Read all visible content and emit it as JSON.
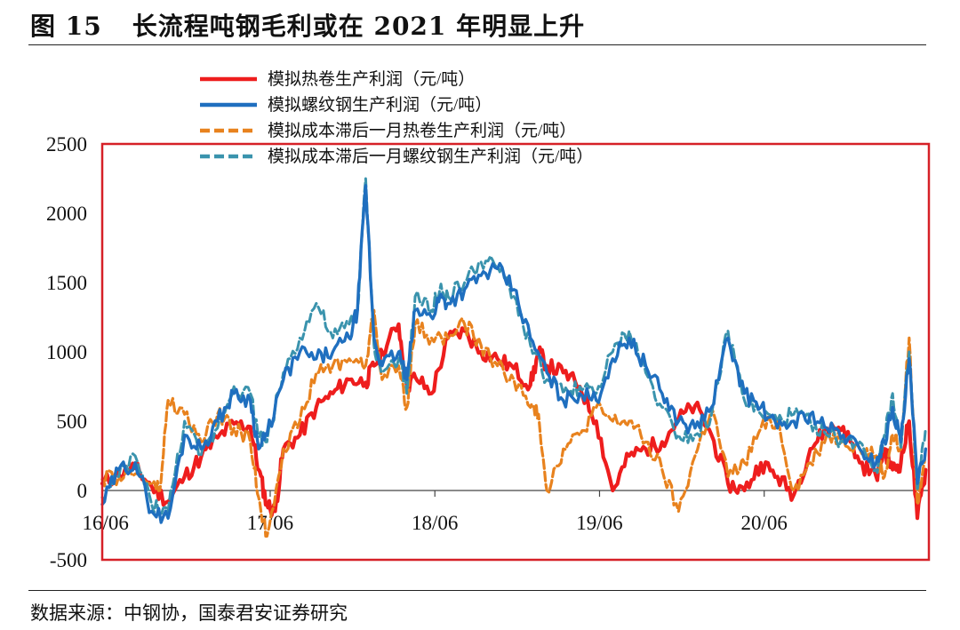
{
  "figure": {
    "number": "图 15",
    "title": "长流程吨钢毛利或在 2021 年明显上升",
    "source": "数据来源：中钢协，国泰君安证券研究"
  },
  "colors": {
    "hot_rolled": "#ee1d1d",
    "rebar": "#1f6fbf",
    "hot_rolled_lag": "#e8821e",
    "rebar_lag": "#3a93ad",
    "frame": "#d62027"
  },
  "chart_data": {
    "type": "line",
    "title": "长流程吨钢毛利或在 2021 年明显上升",
    "xlabel": "",
    "ylabel": "",
    "ylim": [
      -500,
      2500
    ],
    "yticks": [
      -500,
      0,
      500,
      1000,
      1500,
      2000,
      2500
    ],
    "ytick_labels": [
      "-500",
      "0",
      "500",
      "1000",
      "1500",
      "2000",
      "2500"
    ],
    "xlim": [
      2016.4,
      2021.42
    ],
    "xticks": [
      2016.42,
      2017.42,
      2018.42,
      2019.42,
      2020.42
    ],
    "xtick_labels": [
      "16/06",
      "17/06",
      "18/06",
      "19/06",
      "20/06"
    ],
    "grid": false,
    "legend_position": "top",
    "series": [
      {
        "name": "模拟热卷生产利润（元/吨）",
        "style": "solid",
        "color_key": "hot_rolled",
        "x": [
          2016.4,
          2016.5,
          2016.6,
          2016.7,
          2016.8,
          2016.9,
          2017.0,
          2017.1,
          2017.2,
          2017.3,
          2017.35,
          2017.4,
          2017.45,
          2017.5,
          2017.6,
          2017.7,
          2017.8,
          2017.9,
          2018.0,
          2018.05,
          2018.1,
          2018.2,
          2018.25,
          2018.3,
          2018.4,
          2018.5,
          2018.6,
          2018.7,
          2018.8,
          2018.9,
          2019.0,
          2019.05,
          2019.1,
          2019.2,
          2019.3,
          2019.4,
          2019.5,
          2019.6,
          2019.7,
          2019.8,
          2019.9,
          2020.0,
          2020.1,
          2020.2,
          2020.3,
          2020.4,
          2020.5,
          2020.6,
          2020.7,
          2020.8,
          2020.9,
          2021.0,
          2021.1,
          2021.15,
          2021.2,
          2021.25,
          2021.3,
          2021.35,
          2021.4
        ],
        "values": [
          50,
          120,
          160,
          30,
          -80,
          100,
          240,
          380,
          480,
          460,
          150,
          -100,
          -150,
          300,
          400,
          600,
          700,
          800,
          780,
          900,
          1000,
          1200,
          750,
          820,
          700,
          1100,
          1150,
          1000,
          950,
          880,
          760,
          1000,
          900,
          850,
          750,
          500,
          0,
          250,
          300,
          350,
          520,
          610,
          400,
          50,
          0,
          200,
          100,
          -30,
          300,
          450,
          460,
          200,
          100,
          300,
          150,
          200,
          500,
          -200,
          150
        ]
      },
      {
        "name": "模拟螺纹钢生产利润（元/吨）",
        "style": "solid",
        "color_key": "rebar",
        "x": [
          2016.4,
          2016.5,
          2016.6,
          2016.7,
          2016.8,
          2016.9,
          2017.0,
          2017.1,
          2017.2,
          2017.3,
          2017.35,
          2017.4,
          2017.5,
          2017.6,
          2017.7,
          2017.8,
          2017.9,
          2017.95,
          2018.0,
          2018.05,
          2018.1,
          2018.2,
          2018.25,
          2018.3,
          2018.4,
          2018.45,
          2018.5,
          2018.6,
          2018.7,
          2018.8,
          2018.9,
          2019.0,
          2019.1,
          2019.2,
          2019.3,
          2019.4,
          2019.5,
          2019.6,
          2019.7,
          2019.8,
          2019.9,
          2020.0,
          2020.1,
          2020.2,
          2020.3,
          2020.4,
          2020.5,
          2020.6,
          2020.7,
          2020.8,
          2020.9,
          2021.0,
          2021.1,
          2021.15,
          2021.2,
          2021.25,
          2021.3,
          2021.35,
          2021.4
        ],
        "values": [
          -100,
          150,
          200,
          -150,
          -200,
          400,
          300,
          500,
          700,
          650,
          300,
          400,
          800,
          1000,
          950,
          1000,
          1100,
          1300,
          2200,
          1100,
          900,
          1000,
          800,
          1300,
          1250,
          1400,
          1350,
          1450,
          1550,
          1600,
          1450,
          1100,
          850,
          650,
          700,
          650,
          950,
          1100,
          900,
          700,
          500,
          450,
          600,
          1100,
          700,
          600,
          450,
          500,
          550,
          450,
          400,
          300,
          200,
          350,
          600,
          350,
          950,
          50,
          300
        ]
      },
      {
        "name": "模拟成本滞后一月热卷生产利润（元/吨）",
        "style": "dashed",
        "color_key": "hot_rolled_lag",
        "x": [
          2016.4,
          2016.5,
          2016.6,
          2016.7,
          2016.75,
          2016.8,
          2016.9,
          2017.0,
          2017.1,
          2017.2,
          2017.3,
          2017.35,
          2017.4,
          2017.5,
          2017.6,
          2017.7,
          2017.8,
          2017.9,
          2018.0,
          2018.05,
          2018.1,
          2018.2,
          2018.25,
          2018.3,
          2018.4,
          2018.5,
          2018.6,
          2018.7,
          2018.8,
          2018.9,
          2019.0,
          2019.05,
          2019.1,
          2019.2,
          2019.3,
          2019.4,
          2019.5,
          2019.6,
          2019.7,
          2019.8,
          2019.9,
          2020.0,
          2020.1,
          2020.2,
          2020.3,
          2020.4,
          2020.5,
          2020.6,
          2020.7,
          2020.8,
          2020.9,
          2021.0,
          2021.1,
          2021.15,
          2021.2,
          2021.25,
          2021.3,
          2021.35,
          2021.4
        ],
        "values": [
          80,
          100,
          120,
          50,
          0,
          650,
          550,
          350,
          550,
          450,
          350,
          -50,
          -330,
          300,
          500,
          850,
          900,
          950,
          900,
          1300,
          800,
          900,
          600,
          1200,
          1100,
          1100,
          1200,
          1050,
          900,
          800,
          600,
          550,
          0,
          300,
          400,
          600,
          500,
          500,
          350,
          150,
          -150,
          250,
          600,
          100,
          200,
          450,
          500,
          0,
          200,
          400,
          380,
          300,
          250,
          100,
          400,
          300,
          1100,
          -100,
          300
        ]
      },
      {
        "name": "模拟成本滞后一月螺纹钢生产利润（元/吨）",
        "style": "dashed",
        "color_key": "rebar_lag",
        "x": [
          2016.4,
          2016.5,
          2016.6,
          2016.7,
          2016.8,
          2016.9,
          2017.0,
          2017.1,
          2017.2,
          2017.3,
          2017.35,
          2017.4,
          2017.5,
          2017.6,
          2017.7,
          2017.8,
          2017.9,
          2017.95,
          2018.0,
          2018.05,
          2018.1,
          2018.2,
          2018.25,
          2018.3,
          2018.4,
          2018.45,
          2018.5,
          2018.6,
          2018.7,
          2018.8,
          2018.9,
          2019.0,
          2019.1,
          2019.2,
          2019.3,
          2019.4,
          2019.5,
          2019.6,
          2019.7,
          2019.8,
          2019.9,
          2020.0,
          2020.1,
          2020.2,
          2020.3,
          2020.4,
          2020.5,
          2020.6,
          2020.7,
          2020.8,
          2020.9,
          2021.0,
          2021.1,
          2021.15,
          2021.2,
          2021.25,
          2021.3,
          2021.35,
          2021.4
        ],
        "values": [
          -50,
          100,
          250,
          -100,
          -150,
          500,
          250,
          450,
          750,
          700,
          400,
          350,
          850,
          1100,
          1350,
          1100,
          1200,
          1300,
          2250,
          1050,
          850,
          950,
          700,
          1400,
          1300,
          1450,
          1400,
          1500,
          1650,
          1620,
          1400,
          1050,
          800,
          700,
          750,
          700,
          1000,
          1150,
          850,
          600,
          400,
          400,
          550,
          1150,
          650,
          550,
          500,
          550,
          500,
          400,
          350,
          350,
          150,
          400,
          700,
          300,
          1000,
          0,
          450
        ]
      }
    ]
  }
}
